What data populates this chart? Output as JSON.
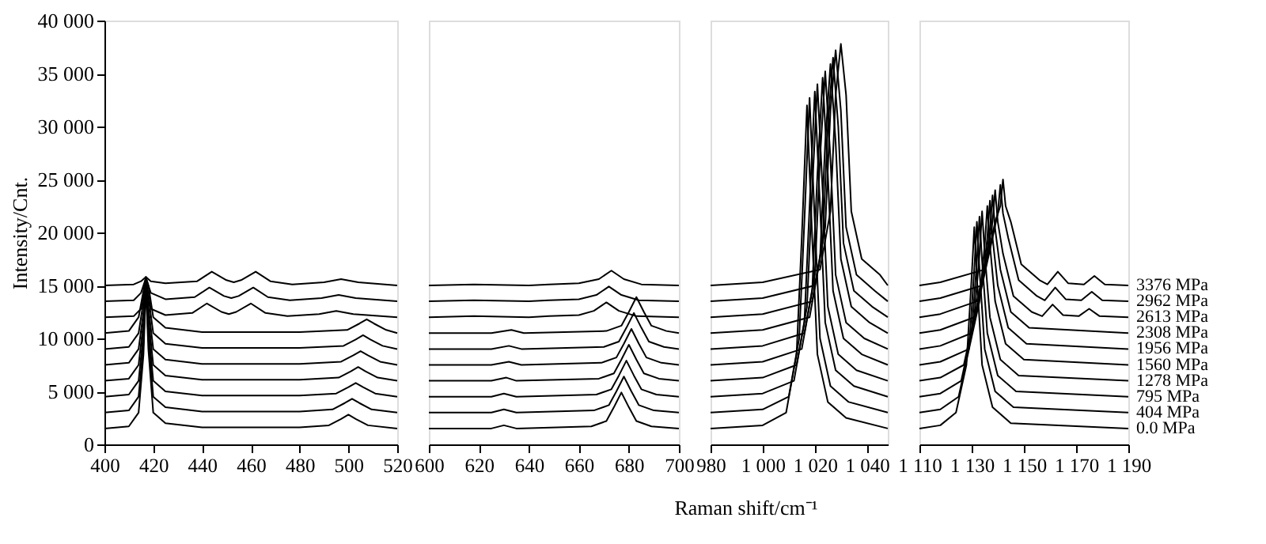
{
  "chart_data": [
    {
      "type": "line",
      "ylabel": "Intensity/Cnt.",
      "xlim": [
        400,
        520
      ],
      "xticks": [
        400,
        420,
        440,
        460,
        480,
        500,
        520
      ],
      "ylim": [
        0,
        40000
      ],
      "yticks": [
        0,
        {
          "value": 5000,
          "label": "5 000"
        },
        {
          "value": 10000,
          "label": "10 000"
        },
        {
          "value": 15000,
          "label": "15 000"
        },
        {
          "value": 20000,
          "label": "20 000"
        },
        {
          "value": 25000,
          "label": "25 000"
        },
        {
          "value": 30000,
          "label": "30 000"
        },
        {
          "value": 35000,
          "label": "35 000"
        },
        {
          "value": 40000,
          "label": "40 000"
        }
      ],
      "series": [
        {
          "color": "#000000",
          "x": [
            400,
            410,
            414,
            416,
            417,
            418,
            420,
            425,
            440,
            480,
            492,
            497,
            500,
            503,
            508,
            520
          ],
          "values": [
            1500,
            1700,
            3000,
            8500,
            15000,
            9000,
            3000,
            2000,
            1600,
            1600,
            1800,
            2400,
            2800,
            2400,
            1800,
            1500
          ]
        },
        {
          "color": "#000000",
          "x": [
            400,
            410,
            414,
            416,
            417,
            418,
            420,
            425,
            440,
            480,
            493.5,
            498.5,
            501.5,
            504.5,
            509.5,
            520
          ],
          "values": [
            3000,
            3200,
            4500,
            9500,
            15200,
            10000,
            4500,
            3500,
            3100,
            3100,
            3300,
            3900,
            4300,
            3900,
            3300,
            3000
          ]
        },
        {
          "color": "#000000",
          "x": [
            400,
            410,
            414,
            416,
            417,
            418,
            420,
            425,
            440,
            480,
            495,
            500,
            503,
            506,
            511,
            520
          ],
          "values": [
            4500,
            4700,
            6000,
            10500,
            15400,
            11000,
            6000,
            5000,
            4600,
            4600,
            4800,
            5400,
            5800,
            5400,
            4800,
            4500
          ]
        },
        {
          "color": "#000000",
          "x": [
            400,
            410,
            414,
            416,
            417,
            418,
            420,
            425,
            440,
            480,
            496,
            501,
            504,
            507,
            512,
            520
          ],
          "values": [
            6000,
            6200,
            7500,
            11500,
            15500,
            12000,
            7500,
            6500,
            6100,
            6100,
            6300,
            6900,
            7300,
            6900,
            6300,
            6000
          ]
        },
        {
          "color": "#000000",
          "x": [
            400,
            410,
            414,
            416,
            417,
            418,
            420,
            425,
            440,
            480,
            497,
            502,
            505,
            508,
            513,
            520
          ],
          "values": [
            7500,
            7700,
            9000,
            12500,
            15600,
            13000,
            9000,
            8000,
            7600,
            7600,
            7800,
            8400,
            8800,
            8400,
            7800,
            7500
          ]
        },
        {
          "color": "#000000",
          "x": [
            400,
            410,
            414,
            416,
            417,
            418,
            420,
            425,
            440,
            480,
            498,
            503,
            506,
            509,
            514,
            520
          ],
          "values": [
            9000,
            9200,
            10500,
            13500,
            15700,
            14000,
            10500,
            9500,
            9100,
            9100,
            9300,
            9900,
            10300,
            9900,
            9300,
            9000
          ]
        },
        {
          "color": "#000000",
          "x": [
            400,
            410,
            414,
            416,
            417,
            418,
            420,
            425,
            440,
            480,
            499.5,
            504.5,
            507.5,
            510.5,
            515.5,
            520
          ],
          "values": [
            10500,
            10700,
            12000,
            14500,
            15800,
            15000,
            12000,
            11000,
            10600,
            10600,
            10800,
            11400,
            11800,
            11400,
            10800,
            10500
          ]
        },
        {
          "color": "#000000",
          "x": [
            400,
            412,
            415,
            417,
            419,
            425,
            436,
            442,
            448,
            451,
            454,
            460,
            466,
            475,
            488,
            495,
            502,
            520
          ],
          "values": [
            12000,
            12100,
            12800,
            15500,
            12800,
            12200,
            12400,
            13300,
            12500,
            12300,
            12500,
            13300,
            12400,
            12100,
            12300,
            12600,
            12300,
            12000
          ]
        },
        {
          "color": "#000000",
          "x": [
            400,
            412,
            415,
            417,
            419,
            425,
            437,
            443,
            449,
            452,
            455,
            461,
            467,
            476,
            489,
            496,
            503,
            520
          ],
          "values": [
            13500,
            13600,
            14300,
            15700,
            14300,
            13700,
            13900,
            14800,
            14000,
            13800,
            14000,
            14800,
            13900,
            13600,
            13800,
            14100,
            13800,
            13500
          ]
        },
        {
          "color": "#000000",
          "x": [
            400,
            412,
            415,
            417,
            419,
            425,
            438,
            444,
            450,
            453,
            456,
            462,
            468,
            477,
            490,
            497,
            504,
            520
          ],
          "values": [
            15000,
            15100,
            15400,
            15800,
            15400,
            15200,
            15400,
            16300,
            15500,
            15300,
            15500,
            16300,
            15400,
            15100,
            15300,
            15600,
            15300,
            15000
          ]
        }
      ]
    },
    {
      "type": "line",
      "xlabel": "Raman shift/cm⁻¹",
      "tick_labels": "x",
      "xlim": [
        600,
        700
      ],
      "xticks": [
        600,
        620,
        640,
        660,
        680,
        700
      ],
      "ylim": [
        0,
        40000
      ],
      "series": [
        {
          "color": "#000000",
          "x": [
            600,
            625,
            630,
            635,
            665,
            671,
            674,
            677,
            680,
            683,
            689,
            700
          ],
          "values": [
            1500,
            1500,
            1800,
            1500,
            1700,
            2200,
            3500,
            4900,
            3500,
            2200,
            1700,
            1500
          ]
        },
        {
          "color": "#000000",
          "x": [
            600,
            625,
            630,
            635,
            666,
            672,
            675,
            678,
            681,
            684,
            690,
            700
          ],
          "values": [
            3000,
            3000,
            3300,
            3000,
            3200,
            3700,
            5000,
            6400,
            5000,
            3700,
            3200,
            3000
          ]
        },
        {
          "color": "#000000",
          "x": [
            600,
            625,
            630,
            635,
            667,
            673,
            676,
            679,
            682,
            685,
            691,
            700
          ],
          "values": [
            4500,
            4500,
            4800,
            4500,
            4700,
            5200,
            6500,
            7900,
            6500,
            5200,
            4700,
            4500
          ]
        },
        {
          "color": "#000000",
          "x": [
            600,
            625,
            631,
            635,
            668,
            674,
            677,
            680,
            683,
            686,
            692,
            700
          ],
          "values": [
            6000,
            6000,
            6300,
            6000,
            6200,
            6700,
            8000,
            9400,
            8000,
            6700,
            6200,
            6000
          ]
        },
        {
          "color": "#000000",
          "x": [
            600,
            625,
            632,
            637,
            669,
            675,
            678,
            681,
            684,
            687,
            693,
            700
          ],
          "values": [
            7500,
            7500,
            7800,
            7500,
            7700,
            8200,
            9500,
            10900,
            9500,
            8200,
            7700,
            7500
          ]
        },
        {
          "color": "#000000",
          "x": [
            600,
            625,
            632,
            637,
            670,
            676,
            679,
            682,
            685,
            688,
            694,
            700
          ],
          "values": [
            9000,
            9000,
            9300,
            9000,
            9200,
            9700,
            11000,
            12400,
            11000,
            9700,
            9200,
            9000
          ]
        },
        {
          "color": "#000000",
          "x": [
            600,
            625,
            633,
            638,
            671,
            677,
            680,
            683,
            686,
            689,
            695,
            700
          ],
          "values": [
            10500,
            10500,
            10800,
            10500,
            10700,
            11200,
            12500,
            13900,
            12500,
            11200,
            10700,
            10500
          ]
        },
        {
          "color": "#000000",
          "x": [
            600,
            618,
            640,
            648,
            660,
            666,
            671,
            676,
            683,
            700
          ],
          "values": [
            12000,
            12100,
            12000,
            12100,
            12200,
            12600,
            13400,
            12600,
            12100,
            12000
          ]
        },
        {
          "color": "#000000",
          "x": [
            600,
            618,
            640,
            648,
            660,
            667,
            672,
            677,
            684,
            700
          ],
          "values": [
            13500,
            13600,
            13500,
            13600,
            13700,
            14100,
            14900,
            14100,
            13600,
            13500
          ]
        },
        {
          "color": "#000000",
          "x": [
            600,
            618,
            640,
            648,
            660,
            668,
            673,
            678,
            685,
            700
          ],
          "values": [
            15000,
            15100,
            15000,
            15100,
            15200,
            15600,
            16400,
            15600,
            15100,
            15000
          ]
        }
      ]
    },
    {
      "type": "line",
      "tick_labels": "x",
      "xlim": [
        980,
        1048
      ],
      "xticks": [
        980,
        {
          "value": 1000,
          "label": "1 000"
        },
        {
          "value": 1020,
          "label": "1 020"
        },
        {
          "value": 1040,
          "label": "1 040"
        }
      ],
      "ylim": [
        0,
        40000
      ],
      "series": [
        {
          "color": "#000000",
          "x": [
            980,
            1000,
            1009,
            1013,
            1015,
            1017,
            1019,
            1021,
            1025,
            1032,
            1048
          ],
          "values": [
            1500,
            1800,
            3000,
            8500,
            19500,
            32000,
            19500,
            8500,
            4000,
            2500,
            1500
          ]
        },
        {
          "color": "#000000",
          "x": [
            980,
            1000,
            1010,
            1014,
            1016,
            1018,
            1020,
            1022,
            1026,
            1033,
            1048
          ],
          "values": [
            3000,
            3300,
            4500,
            10000,
            21000,
            32700,
            21000,
            10000,
            5500,
            4000,
            3000
          ]
        },
        {
          "color": "#000000",
          "x": [
            980,
            1000,
            1012,
            1016,
            1018,
            1020,
            1022,
            1024,
            1028,
            1035,
            1048
          ],
          "values": [
            4500,
            4800,
            6000,
            11500,
            22500,
            33300,
            22500,
            11500,
            7000,
            5500,
            4500
          ]
        },
        {
          "color": "#000000",
          "x": [
            980,
            1000,
            1013,
            1017,
            1019,
            1021,
            1023,
            1025,
            1029,
            1036,
            1048
          ],
          "values": [
            6000,
            6300,
            7500,
            13000,
            24000,
            34000,
            24000,
            13000,
            8500,
            7000,
            6000
          ]
        },
        {
          "color": "#000000",
          "x": [
            980,
            1000,
            1015,
            1019,
            1021,
            1023,
            1025,
            1027,
            1031,
            1038,
            1048
          ],
          "values": [
            7500,
            7800,
            9000,
            14500,
            25500,
            34600,
            25500,
            14500,
            10000,
            8500,
            7500
          ]
        },
        {
          "color": "#000000",
          "x": [
            980,
            1000,
            1016,
            1020,
            1022,
            1024,
            1026,
            1028,
            1032,
            1039,
            1048
          ],
          "values": [
            9000,
            9300,
            10500,
            16000,
            27000,
            35200,
            27000,
            16000,
            11500,
            10000,
            9000
          ]
        },
        {
          "color": "#000000",
          "x": [
            980,
            1000,
            1018,
            1022,
            1024,
            1026,
            1028,
            1030,
            1034,
            1041,
            1048
          ],
          "values": [
            10500,
            10800,
            12000,
            17500,
            28500,
            35900,
            28500,
            17500,
            13000,
            11500,
            10500
          ]
        },
        {
          "color": "#000000",
          "x": [
            980,
            1000,
            1019,
            1023,
            1025,
            1027,
            1029,
            1031,
            1035,
            1042,
            1048
          ],
          "values": [
            12000,
            12300,
            13500,
            19000,
            30000,
            36500,
            30000,
            19000,
            14500,
            13000,
            12000
          ]
        },
        {
          "color": "#000000",
          "x": [
            980,
            1000,
            1020,
            1024,
            1026,
            1028,
            1030,
            1032,
            1036,
            1043,
            1048
          ],
          "values": [
            13500,
            13800,
            15000,
            20500,
            31500,
            37200,
            31500,
            20500,
            16000,
            14500,
            13500
          ]
        },
        {
          "color": "#000000",
          "x": [
            980,
            1000,
            1022,
            1026,
            1028,
            1030,
            1032,
            1034,
            1038,
            1045,
            1048
          ],
          "values": [
            15000,
            15300,
            16500,
            22000,
            33000,
            37800,
            33000,
            22000,
            17500,
            16000,
            15000
          ]
        }
      ]
    },
    {
      "type": "line",
      "tick_labels": "x",
      "xlim": [
        1110,
        1190
      ],
      "xticks": [
        {
          "value": 1110,
          "label": "1 110"
        },
        {
          "value": 1130,
          "label": "1 130"
        },
        {
          "value": 1150,
          "label": "1 150"
        },
        {
          "value": 1170,
          "label": "1 170"
        },
        {
          "value": 1190,
          "label": "1 190"
        }
      ],
      "ylim": [
        0,
        40000
      ],
      "series": [
        {
          "name": "0.0 MPa",
          "color": "#000000",
          "x": [
            1110,
            1118,
            1124,
            1128,
            1130,
            1131,
            1132,
            1134,
            1138,
            1145,
            1190
          ],
          "values": [
            1500,
            1800,
            3000,
            7500,
            15800,
            20500,
            15800,
            7500,
            3500,
            2000,
            1500
          ]
        },
        {
          "name": "404 MPa",
          "color": "#000000",
          "x": [
            1110,
            1118,
            1125,
            1129,
            1131,
            1132,
            1133,
            1135,
            1139,
            1146,
            1190
          ],
          "values": [
            3000,
            3300,
            4500,
            9000,
            16500,
            21000,
            16500,
            9000,
            5000,
            3500,
            3000
          ]
        },
        {
          "name": "795 MPa",
          "color": "#000000",
          "x": [
            1110,
            1118,
            1126,
            1130,
            1132,
            1133,
            1134,
            1136,
            1140,
            1147,
            1190
          ],
          "values": [
            4500,
            4800,
            6000,
            10500,
            17300,
            21500,
            17300,
            10500,
            6500,
            5000,
            4500
          ]
        },
        {
          "name": "1278 MPa",
          "color": "#000000",
          "x": [
            1110,
            1118,
            1127,
            1131,
            1133,
            1134,
            1135,
            1137,
            1141,
            1148,
            1190
          ],
          "values": [
            6000,
            6300,
            7500,
            12000,
            18000,
            22000,
            18000,
            12000,
            8000,
            6500,
            6000
          ]
        },
        {
          "name": "1560 MPa",
          "color": "#000000",
          "x": [
            1110,
            1118,
            1129,
            1133,
            1135,
            1136,
            1137,
            1139,
            1143,
            1150,
            1190
          ],
          "values": [
            7500,
            7800,
            9000,
            13500,
            18800,
            22500,
            18800,
            13500,
            9500,
            8000,
            7500
          ]
        },
        {
          "name": "1956 MPa",
          "color": "#000000",
          "x": [
            1110,
            1118,
            1130,
            1134,
            1136,
            1137,
            1138,
            1140,
            1144,
            1151,
            1190
          ],
          "values": [
            9000,
            9300,
            10500,
            15000,
            19500,
            23000,
            19500,
            15000,
            11000,
            9500,
            9000
          ]
        },
        {
          "name": "2308 MPa",
          "color": "#000000",
          "x": [
            1110,
            1118,
            1131,
            1135,
            1137,
            1138,
            1139,
            1141,
            1145,
            1152,
            1190
          ],
          "values": [
            10500,
            10800,
            12000,
            16500,
            20300,
            23500,
            20300,
            16500,
            12500,
            11000,
            10500
          ]
        },
        {
          "name": "2613 MPa",
          "color": "#000000",
          "x": [
            1110,
            1118,
            1132,
            1136,
            1138,
            1139,
            1140,
            1142,
            1146,
            1153,
            1157,
            1161,
            1165,
            1171,
            1175,
            1179,
            1190
          ],
          "values": [
            12000,
            12300,
            13500,
            18000,
            21000,
            24000,
            21000,
            18000,
            14000,
            12500,
            12100,
            13200,
            12200,
            12100,
            12800,
            12100,
            12000
          ]
        },
        {
          "name": "2962 MPa",
          "color": "#000000",
          "x": [
            1110,
            1118,
            1134,
            1138,
            1140,
            1141,
            1142,
            1144,
            1148,
            1155,
            1158,
            1162,
            1166,
            1172,
            1176,
            1180,
            1190
          ],
          "values": [
            13500,
            13800,
            15000,
            19500,
            21800,
            24500,
            21800,
            19500,
            15500,
            14000,
            13600,
            14800,
            13700,
            13600,
            14400,
            13600,
            13500
          ]
        },
        {
          "name": "3376 MPa",
          "color": "#000000",
          "x": [
            1110,
            1118,
            1135,
            1139,
            1141,
            1142,
            1143,
            1145,
            1149,
            1156,
            1159,
            1163,
            1167,
            1173,
            1177,
            1181,
            1190
          ],
          "values": [
            15000,
            15300,
            16500,
            21000,
            22500,
            25000,
            22500,
            21000,
            17000,
            15500,
            15100,
            16300,
            15200,
            15100,
            15900,
            15100,
            15000
          ]
        }
      ]
    }
  ]
}
